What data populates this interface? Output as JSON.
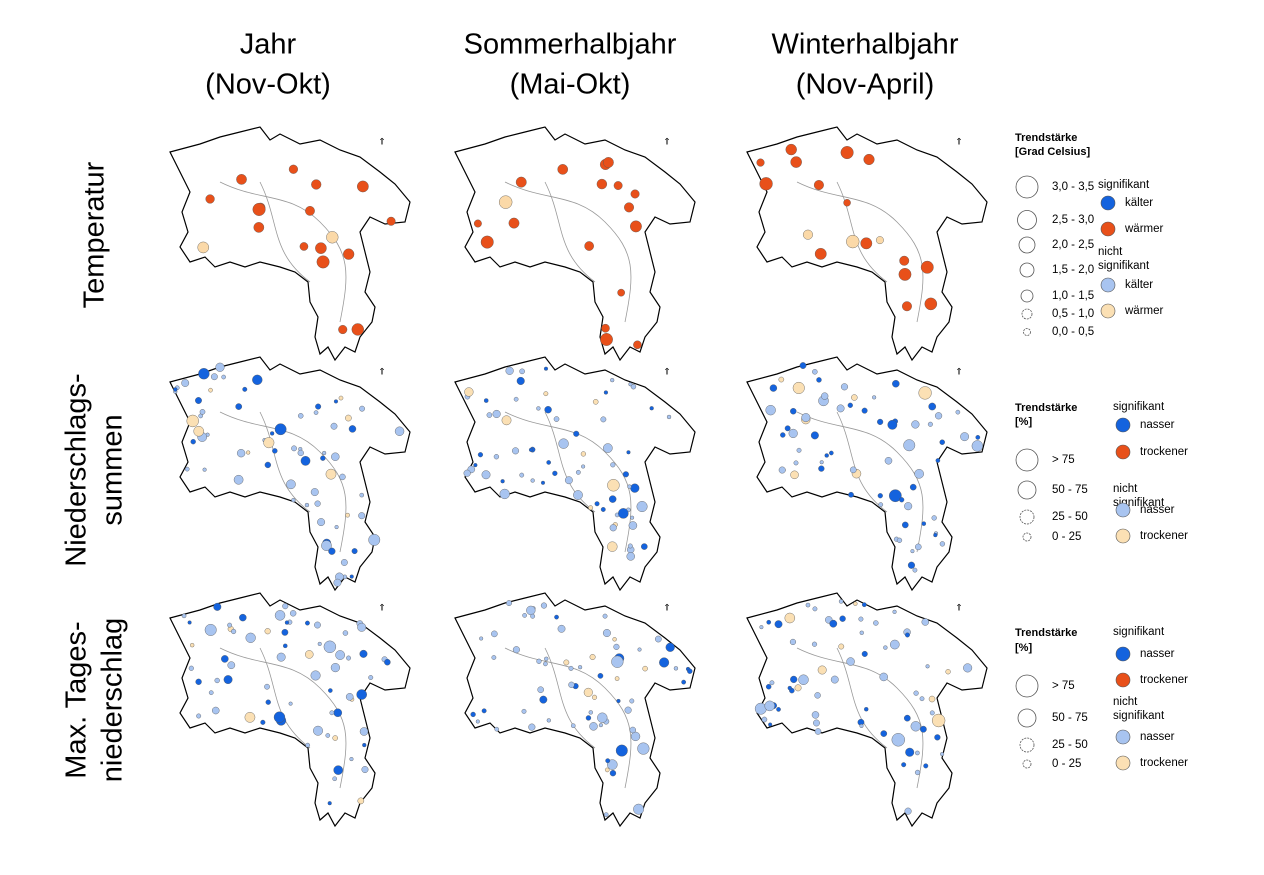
{
  "columns": [
    {
      "title": "Jahr",
      "period": "(Nov-Okt)"
    },
    {
      "title": "Sommerhalbjahr",
      "period": "(Mai-Okt)"
    },
    {
      "title": "Winterhalbjahr",
      "period": "(Nov-April)"
    }
  ],
  "rows": [
    {
      "label": [
        "Temperatur"
      ]
    },
    {
      "label": [
        "Niederschlags-",
        "summen"
      ]
    },
    {
      "label": [
        "Max. Tages-",
        "niederschlag"
      ]
    }
  ],
  "legends": [
    {
      "title": [
        "Trendstärke",
        "[Grad Celsius]"
      ],
      "size_classes": [
        "3,0 - 3,5",
        "2,5 - 3,0",
        "2,0 - 2,5",
        "1,5 - 2,0",
        "1,0 - 1,5",
        "0,5 - 1,0",
        "0,0 - 0,5"
      ],
      "significant": [
        "signifikant"
      ],
      "significant_items": [
        "kälter",
        "wärmer"
      ],
      "not_significant": [
        "nicht",
        "signifikant"
      ],
      "not_significant_items": [
        "kälter",
        "wärmer"
      ]
    },
    {
      "title": [
        "Trendstärke",
        "[%]"
      ],
      "size_classes": [
        "> 75",
        "50 - 75",
        "25 - 50",
        "0 - 25"
      ],
      "significant": [
        "signifikant"
      ],
      "significant_items": [
        "nasser",
        "trockener"
      ],
      "not_significant": [
        "nicht",
        "signifikant"
      ],
      "not_significant_items": [
        "nasser",
        "trockener"
      ]
    },
    {
      "title": [
        "Trendstärke",
        "[%]"
      ],
      "size_classes": [
        "> 75",
        "50 - 75",
        "25 - 50",
        "0 - 25"
      ],
      "significant": [
        "signifikant"
      ],
      "significant_items": [
        "nasser",
        "trockener"
      ],
      "not_significant": [
        "nicht",
        "signifikant"
      ],
      "not_significant_items": [
        "nasser",
        "trockener"
      ]
    }
  ]
}
